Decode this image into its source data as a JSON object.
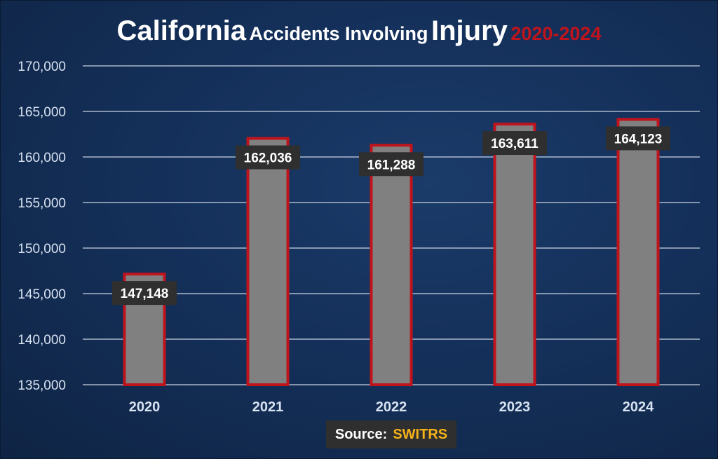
{
  "title": {
    "part1": "California",
    "part2": "Accidents Involving",
    "part3": "Injury",
    "part4": "2020-2024"
  },
  "source": {
    "label": "Source:",
    "value": "SWITRS"
  },
  "colors": {
    "background": "#14305a",
    "bar_fill": "#808080",
    "bar_border": "#c0141c",
    "label_box": "#2f2f2f",
    "title_accent": "#c0141c",
    "source_value": "#f5b21a"
  },
  "chart_data": {
    "type": "bar",
    "categories": [
      "2020",
      "2021",
      "2022",
      "2023",
      "2024"
    ],
    "values": [
      147148,
      162036,
      161288,
      163611,
      164123
    ],
    "data_labels": [
      "147,148",
      "162,036",
      "161,288",
      "163,611",
      "164,123"
    ],
    "ylim": [
      135000,
      170000
    ],
    "yticks": [
      135000,
      140000,
      145000,
      150000,
      155000,
      160000,
      165000,
      170000
    ],
    "ytick_labels": [
      "135,000",
      "140,000",
      "145,000",
      "150,000",
      "155,000",
      "160,000",
      "165,000",
      "170,000"
    ],
    "grid": true,
    "legend": "none"
  }
}
